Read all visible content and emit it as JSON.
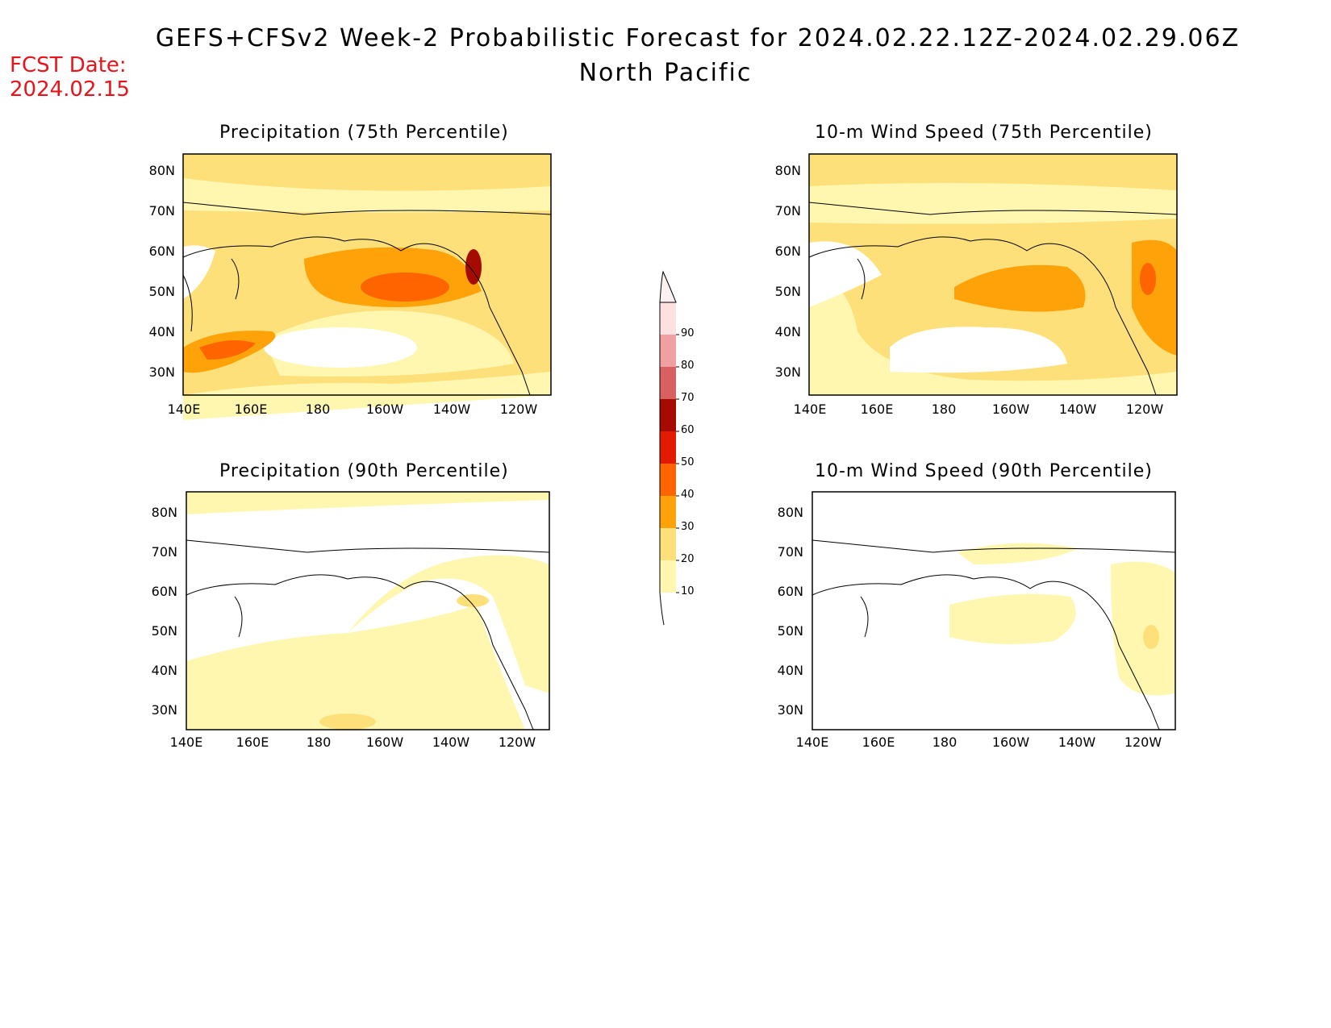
{
  "header": {
    "title": "GEFS+CFSv2 Week-2 Probabilistic Forecast for 2024.02.22.12Z-2024.02.29.06Z",
    "region": "North Pacific",
    "fcst_label": "FCST Date:",
    "fcst_date": "2024.02.15"
  },
  "axes": {
    "lat_labels": [
      "80N",
      "70N",
      "60N",
      "50N",
      "40N",
      "30N"
    ],
    "lon_labels": [
      "140E",
      "160E",
      "180",
      "160W",
      "140W",
      "120W"
    ]
  },
  "panels": [
    {
      "title": "Precipitation (75th Percentile)"
    },
    {
      "title": "10-m Wind Speed (75th Percentile)"
    },
    {
      "title": "Precipitation (90th Percentile)"
    },
    {
      "title": "10-m Wind Speed (90th Percentile)"
    }
  ],
  "colorbar": {
    "levels": [
      "10",
      "20",
      "30",
      "40",
      "50",
      "60",
      "70",
      "80",
      "90"
    ],
    "colors": [
      "#fff7b0",
      "#fde07a",
      "#fea20a",
      "#fe6400",
      "#e21a00",
      "#a50b00",
      "#d86060",
      "#f0a0a0",
      "#fde0e0"
    ]
  }
}
